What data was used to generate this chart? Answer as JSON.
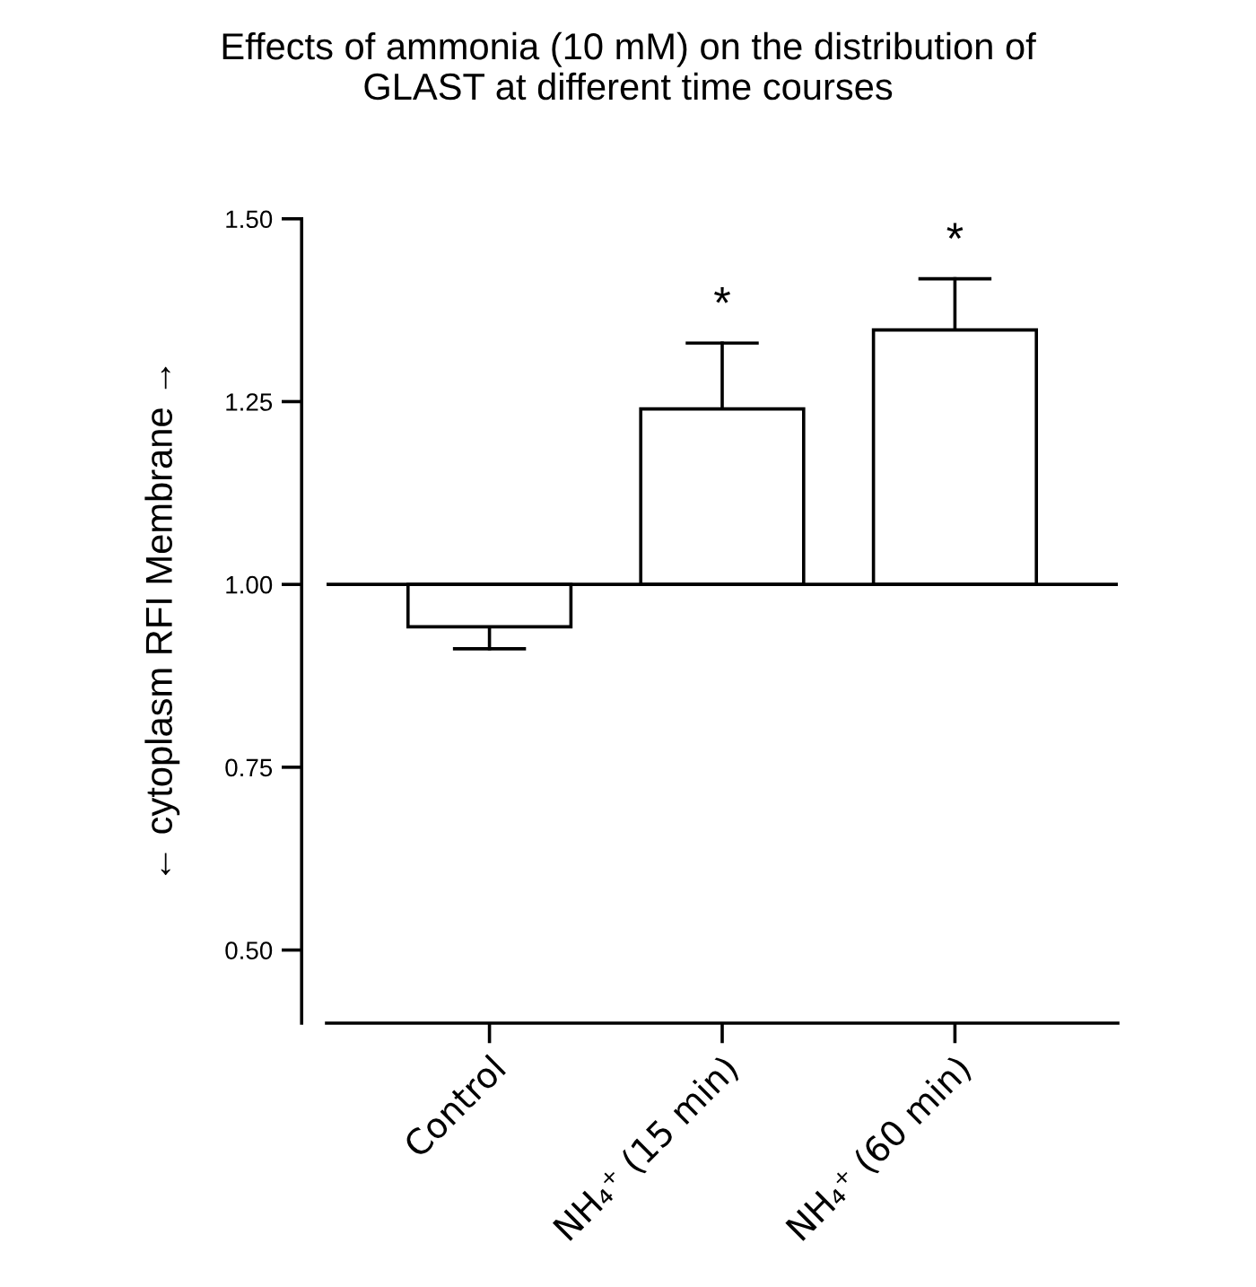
{
  "chart_data": {
    "type": "bar",
    "title": "Effects of ammonia (10 mM) on the distribution of\nGLAST at different time courses",
    "ylabel": "← cytoplasm RFI Membrane →",
    "categories": [
      "Control",
      "NH₄⁺ (15 min)",
      "NH₄⁺ (60 min)"
    ],
    "base": [
      1.0,
      1.0,
      1.0
    ],
    "values": [
      -0.058,
      0.24,
      0.348
    ],
    "errors": [
      [
        0.912,
        0.942
      ],
      [
        1.24,
        1.33
      ],
      [
        1.348,
        1.418
      ]
    ],
    "color": "#ffffff",
    "ylim": [
      0.4,
      1.5
    ],
    "yticks": [
      {
        "value": 0.5,
        "label": "0.50"
      },
      {
        "value": 0.75,
        "label": "0.75"
      },
      {
        "value": 1.0,
        "label": "1.00"
      },
      {
        "value": 1.25,
        "label": "1.25"
      },
      {
        "value": 1.5,
        "label": "1.50"
      }
    ],
    "ref_lines": [
      {
        "axis": "y",
        "value": 1.0,
        "label": null,
        "color": "#000000"
      }
    ],
    "annotations": [
      "*",
      "*"
    ],
    "grid": false,
    "legend": false
  }
}
